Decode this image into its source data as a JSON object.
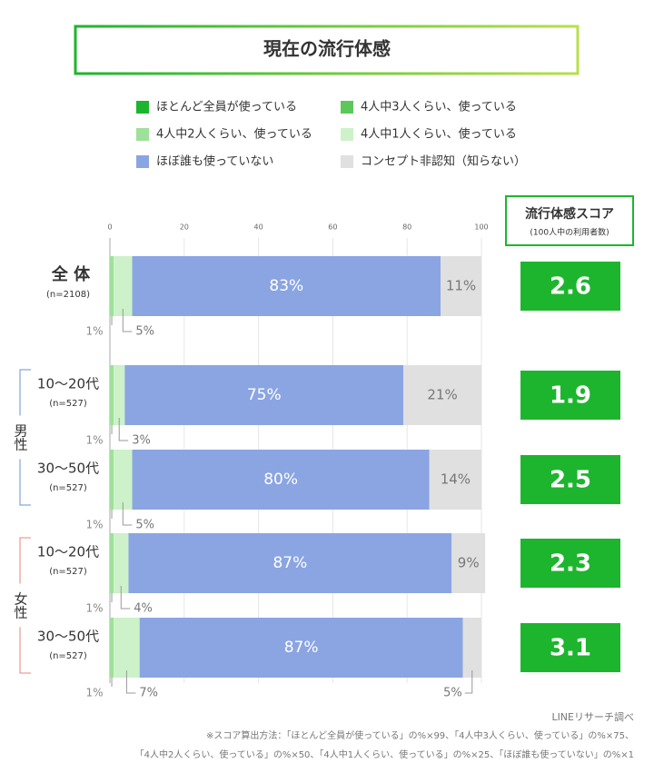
{
  "chart_data": {
    "type": "stacked-bar-horizontal",
    "title": "現在の流行体感",
    "categories": [
      "全 体",
      "10〜20代",
      "30〜50代",
      "10〜20代",
      "30〜50代"
    ],
    "category_notes": [
      "(n=2108)",
      "(n=527)",
      "(n=527)",
      "(n=527)",
      "(n=527)"
    ],
    "groups": [
      {
        "name": "男性",
        "rows": [
          1,
          2
        ],
        "color": "#6b8fd6"
      },
      {
        "name": "女性",
        "rows": [
          3,
          4
        ],
        "color": "#e8837a"
      }
    ],
    "series": [
      {
        "name": "ほとんど全員が使っている",
        "color": "#1db52e",
        "values": [
          0,
          0,
          0,
          0,
          0
        ]
      },
      {
        "name": "4人中3人くらい、使っている",
        "color": "#5cc85a",
        "values": [
          0,
          0,
          0,
          0,
          0
        ]
      },
      {
        "name": "4人中2人くらい、使っている",
        "color": "#9fe09a",
        "values": [
          1,
          1,
          1,
          1,
          1
        ],
        "value_labels": [
          "1%",
          "1%",
          "1%",
          "1%",
          "1%"
        ]
      },
      {
        "name": "4人中1人くらい、使っている",
        "color": "#cdf1c9",
        "values": [
          5,
          3,
          5,
          4,
          7
        ],
        "value_labels": [
          "5%",
          "3%",
          "5%",
          "4%",
          "7%"
        ]
      },
      {
        "name": "ほぼ誰も使っていない",
        "color": "#8ba5e3",
        "values": [
          83,
          75,
          80,
          87,
          87
        ],
        "value_labels": [
          "83%",
          "75%",
          "80%",
          "87%",
          "87%"
        ]
      },
      {
        "name": "コンセプト非認知（知らない）",
        "color": "#e0e0e0",
        "values": [
          11,
          21,
          14,
          9,
          5
        ],
        "value_labels": [
          "11%",
          "21%",
          "14%",
          "9%",
          "5%"
        ]
      }
    ],
    "xlim": [
      0,
      100
    ],
    "xticks": [
      0,
      20,
      40,
      60,
      80,
      100
    ],
    "score_title": "流行体感スコア",
    "score_subtitle": "(100人中の利用者数)",
    "scores": [
      2.6,
      1.9,
      2.5,
      2.3,
      3.1
    ],
    "score_color": "#1db52e",
    "source": "LINEリサーチ調べ",
    "notes": [
      "※スコア算出方法：「ほとんど全員が使っている」の%×99、「4人中3人くらい、使っている」の%×75、",
      "「4人中2人くらい、使っている」の%×50、「4人中1人くらい、使っている」の%×25、「ほぼ誰も使っていない」の%×1"
    ]
  }
}
